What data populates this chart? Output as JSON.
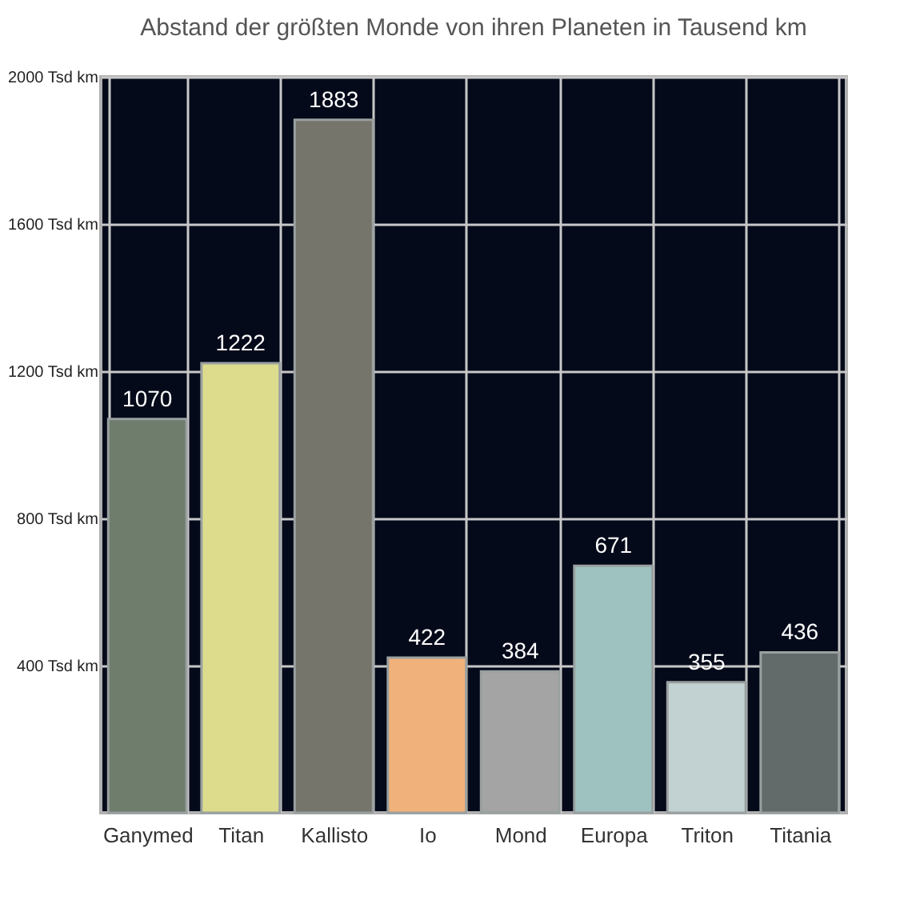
{
  "chart_data": {
    "type": "bar",
    "title": "Abstand der größten Monde von ihren Planeten in Tausend km",
    "categories": [
      "Ganymed",
      "Titan",
      "Kallisto",
      "Io",
      "Mond",
      "Europa",
      "Triton",
      "Titania"
    ],
    "values": [
      1070,
      1222,
      1883,
      422,
      384,
      671,
      355,
      436
    ],
    "colors": [
      "#6e7d6c",
      "#dcdc8c",
      "#75756c",
      "#f0b27a",
      "#a4a4a4",
      "#9ec2c0",
      "#c2d2d2",
      "#626a6a"
    ],
    "ylim": [
      0,
      2000
    ],
    "yticks": [
      {
        "value": 400,
        "label": "400 Tsd km"
      },
      {
        "value": 800,
        "label": "800 Tsd km"
      },
      {
        "value": 1200,
        "label": "1200 Tsd km"
      },
      {
        "value": 1600,
        "label": "1600 Tsd km"
      },
      {
        "value": 2000,
        "label": "2000 Tsd km"
      }
    ],
    "grid": true,
    "data_labels": true
  }
}
